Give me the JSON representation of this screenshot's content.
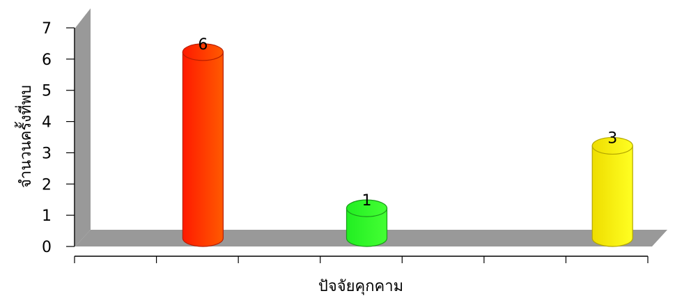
{
  "chart_data": {
    "type": "bar",
    "style": "3d-cylinder",
    "xlabel": "ปัจจัยคุกคาม",
    "ylabel": "จำนวนครั้งที่พบ",
    "ylim": [
      0,
      7
    ],
    "yticks": [
      0,
      1,
      2,
      3,
      4,
      5,
      6,
      7
    ],
    "grid": false,
    "legend": "none",
    "categories": [
      "",
      "",
      "",
      "",
      "",
      "",
      ""
    ],
    "series": [
      {
        "values": [
          null,
          6,
          null,
          1,
          null,
          null,
          3
        ]
      }
    ],
    "data_labels": [
      "",
      "6",
      "",
      "1",
      "",
      "",
      "3"
    ],
    "bar_colors": [
      "",
      "#ff3300",
      "",
      "#33ff33",
      "",
      "",
      "#ffee00"
    ],
    "wall_color": "#999999",
    "floor_color": "#999999"
  }
}
